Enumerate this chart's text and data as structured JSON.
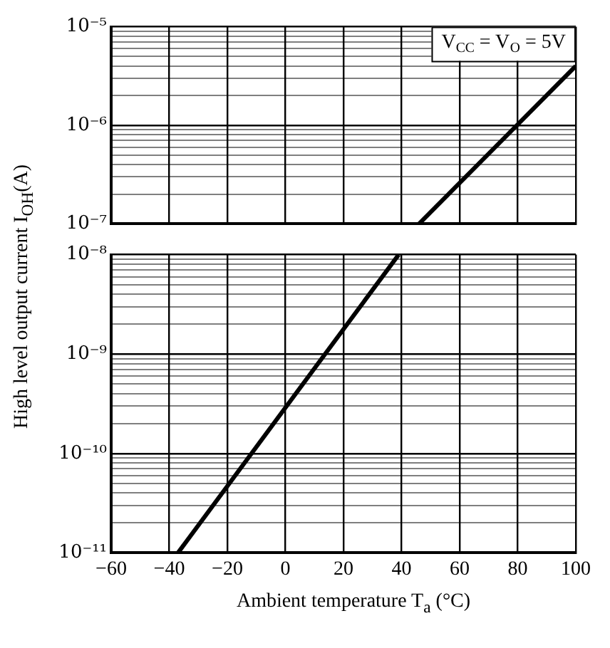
{
  "chart_data": [
    {
      "type": "line",
      "annotations": [
        "V$_{CC}$ = V$_{O}$ = 5V"
      ],
      "series": [
        {
          "color": "#000000",
          "x": [
            46,
            100
          ],
          "values": [
            1e-07,
            4e-06
          ]
        }
      ],
      "xlim": [
        -60,
        100
      ],
      "xticks": [
        -60,
        -40,
        -20,
        0,
        20,
        40,
        60,
        80,
        100
      ],
      "ylim": [
        1e-07,
        1e-05
      ],
      "yticks": [
        {
          "value": 1e-07,
          "label": "10⁻⁷"
        },
        {
          "value": 2e-07,
          "label": null
        },
        {
          "value": 3e-07,
          "label": null
        },
        {
          "value": 4e-07,
          "label": null
        },
        {
          "value": 5e-07,
          "label": null
        },
        {
          "value": 6e-07,
          "label": null
        },
        {
          "value": 7e-07,
          "label": null
        },
        {
          "value": 8e-07,
          "label": null
        },
        {
          "value": 9e-07,
          "label": null
        },
        {
          "value": 1e-06,
          "label": "10⁻⁶"
        },
        {
          "value": 2e-06,
          "label": null
        },
        {
          "value": 3e-06,
          "label": null
        },
        {
          "value": 4e-06,
          "label": null
        },
        {
          "value": 5e-06,
          "label": null
        },
        {
          "value": 6e-06,
          "label": null
        },
        {
          "value": 7e-06,
          "label": null
        },
        {
          "value": 8e-06,
          "label": null
        },
        {
          "value": 9e-06,
          "label": null
        },
        {
          "value": 1e-05,
          "label": "10⁻⁵"
        }
      ],
      "tick_labels": "y",
      "log": "y",
      "grid": true,
      "marker": "none",
      "line_style": "solid"
    },
    {
      "type": "line",
      "ylabel": "High level output current I$_{OH}$(A)",
      "xlabel": "Ambient temperature T$_{a}$ (°C)",
      "series": [
        {
          "color": "#000000",
          "x": [
            -37,
            39
          ],
          "values": [
            1e-11,
            1e-08
          ]
        }
      ],
      "xlim": [
        -60,
        100
      ],
      "xticks": [
        {
          "value": -60,
          "label": "−60"
        },
        {
          "value": -40,
          "label": "−40"
        },
        {
          "value": -20,
          "label": "−20"
        },
        0,
        20,
        40,
        60,
        80,
        100
      ],
      "ylim": [
        1e-11,
        1e-08
      ],
      "yticks": [
        {
          "value": 1e-11,
          "label": "10⁻¹¹"
        },
        {
          "value": 2e-11,
          "label": null
        },
        {
          "value": 3e-11,
          "label": null
        },
        {
          "value": 4e-11,
          "label": null
        },
        {
          "value": 5e-11,
          "label": null
        },
        {
          "value": 6e-11,
          "label": null
        },
        {
          "value": 7e-11,
          "label": null
        },
        {
          "value": 8e-11,
          "label": null
        },
        {
          "value": 9e-11,
          "label": null
        },
        {
          "value": 1e-10,
          "label": "10⁻¹⁰"
        },
        {
          "value": 2e-10,
          "label": null
        },
        {
          "value": 3e-10,
          "label": null
        },
        {
          "value": 4e-10,
          "label": null
        },
        {
          "value": 5e-10,
          "label": null
        },
        {
          "value": 6e-10,
          "label": null
        },
        {
          "value": 7e-10,
          "label": null
        },
        {
          "value": 8e-10,
          "label": null
        },
        {
          "value": 9e-10,
          "label": null
        },
        {
          "value": 1e-09,
          "label": "10⁻⁹"
        },
        {
          "value": 2e-09,
          "label": null
        },
        {
          "value": 3e-09,
          "label": null
        },
        {
          "value": 4e-09,
          "label": null
        },
        {
          "value": 5e-09,
          "label": null
        },
        {
          "value": 6e-09,
          "label": null
        },
        {
          "value": 7e-09,
          "label": null
        },
        {
          "value": 8e-09,
          "label": null
        },
        {
          "value": 9e-09,
          "label": null
        },
        {
          "value": 1e-08,
          "label": "10⁻⁸"
        }
      ],
      "log": "y",
      "grid": true,
      "marker": "none",
      "line_style": "solid"
    }
  ]
}
